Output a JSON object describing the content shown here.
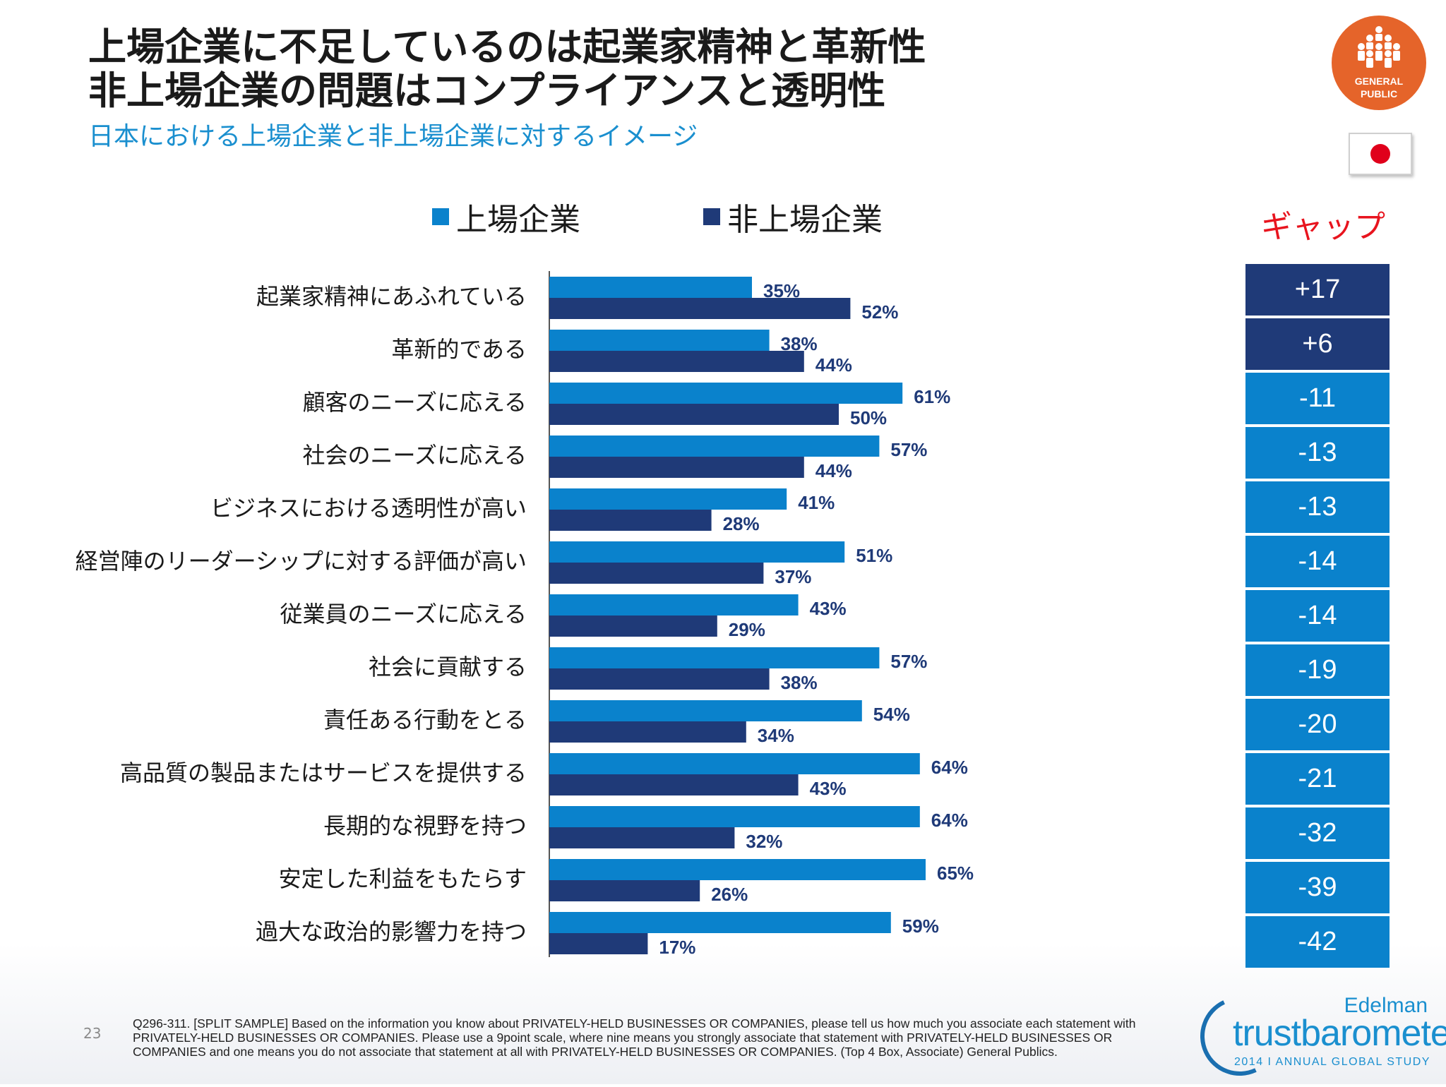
{
  "title_line1": "上場企業に不足しているのは起業家精神と革新性",
  "title_line2": "非上場企業の問題はコンプライアンスと透明性",
  "subtitle": "日本における上場企業と非上場企業に対するイメージ",
  "badge": {
    "line1": "GENERAL",
    "line2": "PUBLIC",
    "icon": "people-group-icon",
    "color": "#e5642a"
  },
  "flag": {
    "country": "Japan",
    "icon": "japan-flag-icon"
  },
  "colors": {
    "listed": "#0a82cc",
    "unlisted": "#1f3a78",
    "gap_positive": "#1f3a78",
    "gap_negative": "#0a82cc",
    "gap_title": "#e8141e"
  },
  "gap_title": "ギャップ",
  "page_number": "23",
  "footnote": "Q296-311. [SPLIT SAMPLE] Based on the information you know about PRIVATELY-HELD BUSINESSES OR COMPANIES, please tell us how much you associate each statement with PRIVATELY-HELD BUSINESSES OR COMPANIES.  Please use a 9point scale, where nine means you strongly associate that statement with PRIVATELY-HELD BUSINESSES OR COMPANIES and one means you do not associate that statement at all with PRIVATELY-HELD BUSINESSES OR COMPANIES. (Top 4 Box, Associate) General Publics.",
  "logo": {
    "brand": "Edelman",
    "product": "trustbarometer",
    "study": "2014 I ANNUAL GLOBAL STUDY"
  },
  "chart_data": {
    "type": "bar",
    "orientation": "horizontal",
    "unit": "%",
    "xlim": [
      0,
      100
    ],
    "grid": false,
    "legend": "top",
    "categories": [
      "起業家精神にあふれている",
      "革新的である",
      "顧客のニーズに応える",
      "社会のニーズに応える",
      "ビジネスにおける透明性が高い",
      "経営陣のリーダーシップに対する評価が高い",
      "従業員のニーズに応える",
      "社会に貢献する",
      "責任ある行動をとる",
      "高品質の製品またはサービスを提供する",
      "長期的な視野を持つ",
      "安定した利益をもたらす",
      "過大な政治的影響力を持つ"
    ],
    "series": [
      {
        "name": "上場企業",
        "values": [
          35,
          38,
          61,
          57,
          41,
          51,
          43,
          57,
          54,
          64,
          64,
          65,
          59
        ]
      },
      {
        "name": "非上場企業",
        "values": [
          52,
          44,
          50,
          44,
          28,
          37,
          29,
          38,
          34,
          43,
          32,
          26,
          17
        ]
      }
    ],
    "data_labels": {
      "listed": [
        "35%",
        "38%",
        "61%",
        "57%",
        "41%",
        "51%",
        "43%",
        "57%",
        "54%",
        "64%",
        "64%",
        "65%",
        "59%"
      ],
      "unlisted": [
        "52%",
        "44%",
        "50%",
        "44%",
        "28%",
        "37%",
        "29%",
        "38%",
        "34%",
        "43%",
        "32%",
        "26%",
        "17%"
      ]
    },
    "gap": {
      "values": [
        17,
        6,
        -11,
        -13,
        -13,
        -14,
        -14,
        -19,
        -20,
        -21,
        -32,
        -39,
        -42
      ],
      "labels": [
        "+17",
        "+6",
        "-11",
        "-13",
        "-13",
        "-14",
        "-14",
        "-19",
        "-20",
        "-21",
        "-32",
        "-39",
        "-42"
      ]
    }
  }
}
